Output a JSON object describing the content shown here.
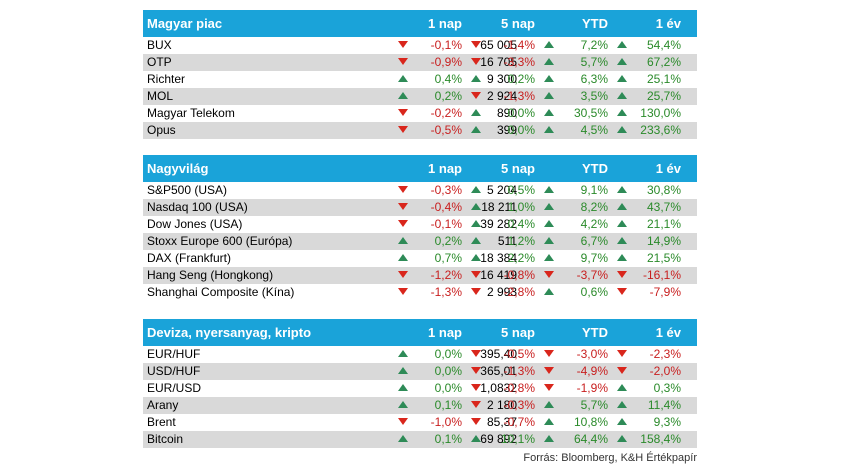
{
  "columns": [
    "1 nap",
    "5 nap",
    "YTD",
    "1 év"
  ],
  "sections": [
    {
      "title": "Magyar piac",
      "rows": [
        {
          "name": "BUX",
          "value": "65 005",
          "changes": [
            {
              "v": "-0,1%",
              "d": "down"
            },
            {
              "v": "-1,4%",
              "d": "down"
            },
            {
              "v": "7,2%",
              "d": "up"
            },
            {
              "v": "54,4%",
              "d": "up"
            }
          ]
        },
        {
          "name": "OTP",
          "value": "16 705",
          "changes": [
            {
              "v": "-0,9%",
              "d": "down"
            },
            {
              "v": "-3,3%",
              "d": "down"
            },
            {
              "v": "5,7%",
              "d": "up"
            },
            {
              "v": "67,2%",
              "d": "up"
            }
          ]
        },
        {
          "name": "Richter",
          "value": "9 300",
          "changes": [
            {
              "v": "0,4%",
              "d": "up"
            },
            {
              "v": "0,2%",
              "d": "up"
            },
            {
              "v": "6,3%",
              "d": "up"
            },
            {
              "v": "25,1%",
              "d": "up"
            }
          ]
        },
        {
          "name": "MOL",
          "value": "2 924",
          "changes": [
            {
              "v": "0,2%",
              "d": "up"
            },
            {
              "v": "-1,3%",
              "d": "down"
            },
            {
              "v": "3,5%",
              "d": "up"
            },
            {
              "v": "25,7%",
              "d": "up"
            }
          ]
        },
        {
          "name": "Magyar Telekom",
          "value": "890",
          "changes": [
            {
              "v": "-0,2%",
              "d": "down"
            },
            {
              "v": "0,0%",
              "d": "up"
            },
            {
              "v": "30,5%",
              "d": "up"
            },
            {
              "v": "130,0%",
              "d": "up"
            }
          ]
        },
        {
          "name": "Opus",
          "value": "399",
          "changes": [
            {
              "v": "-0,5%",
              "d": "down"
            },
            {
              "v": "0,0%",
              "d": "up"
            },
            {
              "v": "4,5%",
              "d": "up"
            },
            {
              "v": "233,6%",
              "d": "up"
            }
          ]
        }
      ]
    },
    {
      "title": "Nagyvilág",
      "rows": [
        {
          "name": "S&P500 (USA)",
          "value": "5 204",
          "changes": [
            {
              "v": "-0,3%",
              "d": "down"
            },
            {
              "v": "0,5%",
              "d": "up"
            },
            {
              "v": "9,1%",
              "d": "up"
            },
            {
              "v": "30,8%",
              "d": "up"
            }
          ]
        },
        {
          "name": "Nasdaq 100 (USA)",
          "value": "18 211",
          "changes": [
            {
              "v": "-0,4%",
              "d": "down"
            },
            {
              "v": "1,0%",
              "d": "up"
            },
            {
              "v": "8,2%",
              "d": "up"
            },
            {
              "v": "43,7%",
              "d": "up"
            }
          ]
        },
        {
          "name": "Dow Jones (USA)",
          "value": "39 282",
          "changes": [
            {
              "v": "-0,1%",
              "d": "down"
            },
            {
              "v": "0,4%",
              "d": "up"
            },
            {
              "v": "4,2%",
              "d": "up"
            },
            {
              "v": "21,1%",
              "d": "up"
            }
          ]
        },
        {
          "name": "Stoxx Europe 600 (Európa)",
          "value": "511",
          "changes": [
            {
              "v": "0,2%",
              "d": "up"
            },
            {
              "v": "1,2%",
              "d": "up"
            },
            {
              "v": "6,7%",
              "d": "up"
            },
            {
              "v": "14,9%",
              "d": "up"
            }
          ]
        },
        {
          "name": "DAX (Frankfurt)",
          "value": "18 384",
          "changes": [
            {
              "v": "0,7%",
              "d": "up"
            },
            {
              "v": "2,2%",
              "d": "up"
            },
            {
              "v": "9,7%",
              "d": "up"
            },
            {
              "v": "21,5%",
              "d": "up"
            }
          ]
        },
        {
          "name": "Hang Seng (Hongkong)",
          "value": "16 419",
          "changes": [
            {
              "v": "-1,2%",
              "d": "down"
            },
            {
              "v": "-0,8%",
              "d": "down"
            },
            {
              "v": "-3,7%",
              "d": "down"
            },
            {
              "v": "-16,1%",
              "d": "down"
            }
          ]
        },
        {
          "name": "Shanghai Composite (Kína)",
          "value": "2 993",
          "changes": [
            {
              "v": "-1,3%",
              "d": "down"
            },
            {
              "v": "-2,8%",
              "d": "down"
            },
            {
              "v": "0,6%",
              "d": "up"
            },
            {
              "v": "-7,9%",
              "d": "down"
            }
          ]
        }
      ]
    },
    {
      "title": "Deviza, nyersanyag, kripto",
      "rows": [
        {
          "name": "EUR/HUF",
          "value": "395,40",
          "changes": [
            {
              "v": "0,0%",
              "d": "up"
            },
            {
              "v": "-0,5%",
              "d": "down"
            },
            {
              "v": "-3,0%",
              "d": "down"
            },
            {
              "v": "-2,3%",
              "d": "down"
            }
          ]
        },
        {
          "name": "USD/HUF",
          "value": "365,01",
          "changes": [
            {
              "v": "0,0%",
              "d": "up"
            },
            {
              "v": "-1,3%",
              "d": "down"
            },
            {
              "v": "-4,9%",
              "d": "down"
            },
            {
              "v": "-2,0%",
              "d": "down"
            }
          ]
        },
        {
          "name": "EUR/USD",
          "value": "1,0832",
          "changes": [
            {
              "v": "0,0%",
              "d": "up"
            },
            {
              "v": "-0,8%",
              "d": "down"
            },
            {
              "v": "-1,9%",
              "d": "down"
            },
            {
              "v": "0,3%",
              "d": "up"
            }
          ]
        },
        {
          "name": "Arany",
          "value": "2 180",
          "changes": [
            {
              "v": "0,1%",
              "d": "up"
            },
            {
              "v": "-0,3%",
              "d": "down"
            },
            {
              "v": "5,7%",
              "d": "up"
            },
            {
              "v": "11,4%",
              "d": "up"
            }
          ]
        },
        {
          "name": "Brent",
          "value": "85,37",
          "changes": [
            {
              "v": "-1,0%",
              "d": "down"
            },
            {
              "v": "-0,7%",
              "d": "down"
            },
            {
              "v": "10,8%",
              "d": "up"
            },
            {
              "v": "9,3%",
              "d": "up"
            }
          ]
        },
        {
          "name": "Bitcoin",
          "value": "69 892",
          "changes": [
            {
              "v": "0,1%",
              "d": "up"
            },
            {
              "v": "10,1%",
              "d": "up"
            },
            {
              "v": "64,4%",
              "d": "up"
            },
            {
              "v": "158,4%",
              "d": "up"
            }
          ]
        }
      ]
    }
  ],
  "source": "Forrás: Bloomberg, K&H Értékpapír",
  "colors": {
    "header": "#1aa3d9",
    "up": "#2a8a2a",
    "down": "#c81e1e",
    "alt_row": "#d9d9d9"
  }
}
